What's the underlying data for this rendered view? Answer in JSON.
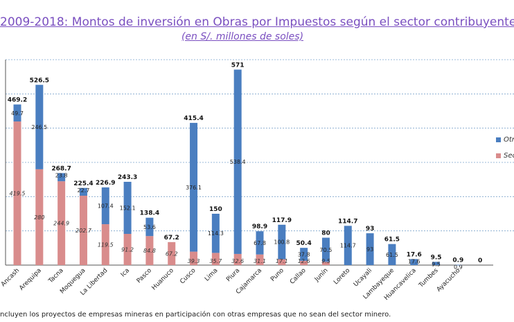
{
  "title": "2009-2018: Montos de inversión en Obras por Impuestos según el sector contribuyente",
  "subtitle": "(en S/. millones de soles)",
  "footnote": "ncluyen los proyectos de empresas mineras en participación con otras empresas que no sean del sector minero.",
  "colors": {
    "sector_minero": "#d98c8c",
    "otros": "#4a7ec0",
    "grid": "#7aa2cc",
    "title": "#7a4fc0"
  },
  "legend": [
    {
      "label": "Otr",
      "color": "#4a7ec0"
    },
    {
      "label": "Sec",
      "color": "#d98c8c"
    }
  ],
  "chart_data": {
    "type": "bar",
    "stacked": true,
    "title": "2009-2018: Montos de inversión en Obras por Impuestos según el sector contribuyente",
    "subtitle": "(en S/. millones de soles)",
    "ylim": [
      0,
      600
    ],
    "grid": true,
    "legend_position": "right",
    "categories": [
      "Ancash",
      "Arequipa",
      "Tacna",
      "Moquegua",
      "La Libertad",
      "Ica",
      "Pasco",
      "Huanuco",
      "Cusco",
      "Lima",
      "Piura",
      "Cajamarca",
      "Puno",
      "Callao",
      "Junín",
      "Loreto",
      "Ucayali",
      "Lambayeque",
      "Huancavelica",
      "Tumbes",
      "Ayacucho",
      ""
    ],
    "series": [
      {
        "name": "Sec",
        "values": [
          419.5,
          280,
          244.9,
          202.7,
          119.5,
          91.2,
          84.8,
          67.2,
          39.3,
          35.7,
          32.6,
          31.1,
          17.1,
          12.6,
          9.5,
          0,
          0,
          0,
          0,
          0,
          0,
          0
        ],
        "labels": [
          "419.5",
          "280",
          "244.9",
          "202.7",
          "119.5",
          "91.2",
          "84.8",
          "67.2",
          "39.3",
          "35.7",
          "32.6",
          "31.1",
          "17.1",
          "12.6",
          "9.5",
          "",
          "",
          "",
          "",
          "",
          "",
          ""
        ]
      },
      {
        "name": "Otr",
        "values": [
          49.7,
          246.5,
          23.8,
          22.7,
          107.4,
          152.1,
          53.6,
          0,
          376.1,
          114.3,
          538.4,
          67.8,
          100.8,
          37.8,
          70.5,
          114.7,
          93,
          61.5,
          17.6,
          9.5,
          0.9,
          0
        ],
        "labels": [
          "49.7",
          "246.5",
          "23.8",
          "22.7",
          "107.4",
          "152.1",
          "53.6",
          "",
          "376.1",
          "114.3",
          "538.4",
          "67.8",
          "100.8",
          "37.8",
          "70.5",
          "114.7",
          "93",
          "61.5",
          "17.6",
          "9.5",
          "0.9",
          ""
        ]
      }
    ],
    "totals": [
      "469.2",
      "526.5",
      "268.7",
      "225.4",
      "226.9",
      "243.3",
      "138.4",
      "67.2",
      "415.4",
      "150",
      "571",
      "98.9",
      "117.9",
      "50.4",
      "80",
      "114.7",
      "93",
      "61.5",
      "17.6",
      "9.5",
      "0.9",
      "0"
    ]
  }
}
